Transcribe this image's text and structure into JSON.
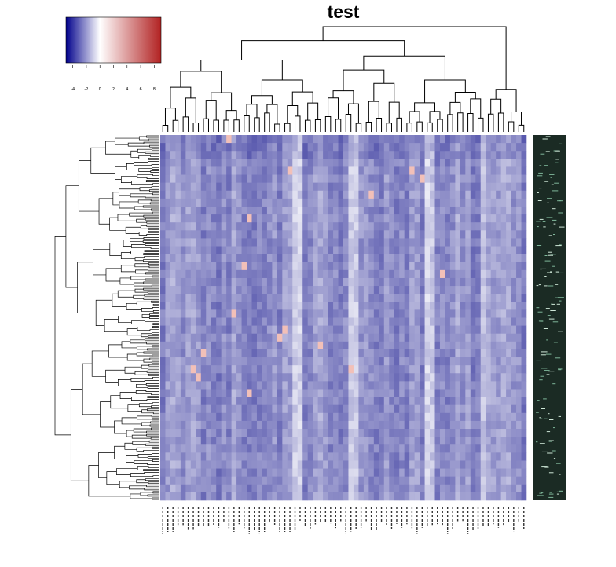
{
  "chart_data": {
    "type": "heatmap",
    "title": "test",
    "color_key": {
      "colors": [
        "#00008b",
        "#ffffff",
        "#b22222"
      ],
      "ticks": [
        "-4",
        "-2",
        "0",
        "2",
        "4",
        "6",
        "8"
      ],
      "range": [
        -5,
        9
      ]
    },
    "n_cols": 72,
    "n_rows": 230,
    "row_dendrogram": true,
    "col_dendrogram": true,
    "row_labels_visible": false,
    "col_labels_visible": false
  }
}
